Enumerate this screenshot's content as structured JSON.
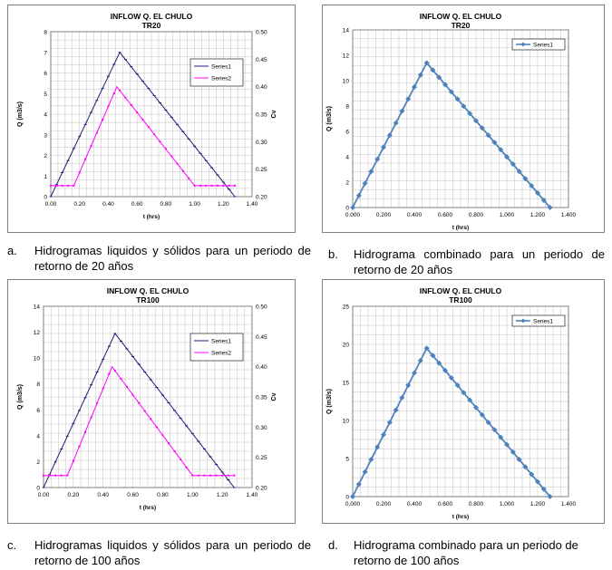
{
  "colors": {
    "series1_dual": "#1f1f7a",
    "series2_dual": "#ff00ff",
    "series1_combined": "#4f81bd",
    "grid": "#c0c0c0",
    "frame": "#808080"
  },
  "chart_data": [
    {
      "id": "a",
      "type": "line",
      "title": "INFLOW  Q. EL CHULO",
      "subtitle": "TR20",
      "xlabel": "t (hrs)",
      "ylabel": "Q (m3/s)",
      "y2label": "Cv",
      "xlim": [
        0,
        1.4
      ],
      "ylim": [
        0,
        8
      ],
      "y2lim": [
        0.2,
        0.5
      ],
      "x_ticks": [
        "0.00",
        "0.20",
        "0.40",
        "0.60",
        "0.80",
        "1.00",
        "1.20",
        "1.40"
      ],
      "y_ticks": [
        "0",
        "1",
        "2",
        "3",
        "4",
        "5",
        "6",
        "7",
        "8"
      ],
      "y2_ticks": [
        "0.20",
        "0.25",
        "0.30",
        "0.35",
        "0.40",
        "0.45",
        "0.50"
      ],
      "legend_position": "top-right",
      "grid": true,
      "series": [
        {
          "name": "Series1",
          "axis": "left",
          "marker": "dash",
          "x": [
            0,
            0.48,
            1.28
          ],
          "y": [
            0,
            7.0,
            0
          ]
        },
        {
          "name": "Series2",
          "axis": "right",
          "marker": "dot",
          "x": [
            0,
            0.16,
            0.46,
            1.0,
            1.28
          ],
          "y": [
            0.22,
            0.22,
            0.4,
            0.22,
            0.22
          ]
        }
      ]
    },
    {
      "id": "b",
      "type": "line",
      "title": "INFLOW  Q. EL CHULO",
      "subtitle": "TR20",
      "xlabel": "t (hrs)",
      "ylabel": "Q (m3/s)",
      "xlim": [
        0,
        1.4
      ],
      "ylim": [
        0,
        14
      ],
      "x_ticks": [
        "0.000",
        "0.200",
        "0.400",
        "0.600",
        "0.800",
        "1.000",
        "1.200",
        "1.400"
      ],
      "y_ticks": [
        "0",
        "2",
        "4",
        "6",
        "8",
        "10",
        "12",
        "14"
      ],
      "legend_position": "top-right",
      "grid": true,
      "series": [
        {
          "name": "Series1",
          "axis": "left",
          "marker": "diamond",
          "x": [
            0,
            0.48,
            1.28
          ],
          "y": [
            0,
            11.4,
            0
          ]
        }
      ]
    },
    {
      "id": "c",
      "type": "line",
      "title": "INFLOW  Q. EL CHULO",
      "subtitle": "TR100",
      "xlabel": "t (hrs)",
      "ylabel": "Q (m3/s)",
      "y2label": "Cv",
      "xlim": [
        0,
        1.4
      ],
      "ylim": [
        0,
        14
      ],
      "y2lim": [
        0.2,
        0.5
      ],
      "x_ticks": [
        "0.00",
        "0.20",
        "0.40",
        "0.60",
        "0.80",
        "1.00",
        "1.20",
        "1.40"
      ],
      "y_ticks": [
        "0",
        "2",
        "4",
        "6",
        "8",
        "10",
        "12",
        "14"
      ],
      "y2_ticks": [
        "0.20",
        "0.25",
        "0.30",
        "0.35",
        "0.40",
        "0.45",
        "0.50"
      ],
      "legend_position": "top-right",
      "grid": true,
      "series": [
        {
          "name": "Series1",
          "axis": "left",
          "marker": "dash",
          "x": [
            0,
            0.48,
            1.28
          ],
          "y": [
            0,
            11.9,
            0
          ]
        },
        {
          "name": "Series2",
          "axis": "right",
          "marker": "dot",
          "x": [
            0,
            0.16,
            0.46,
            1.0,
            1.28
          ],
          "y": [
            0.22,
            0.22,
            0.4,
            0.22,
            0.22
          ]
        }
      ]
    },
    {
      "id": "d",
      "type": "line",
      "title": "INFLOW  Q. EL CHULO",
      "subtitle": "TR100",
      "xlabel": "t (hrs)",
      "ylabel": "Q (m3/s)",
      "xlim": [
        0,
        1.4
      ],
      "ylim": [
        0,
        25
      ],
      "x_ticks": [
        "0.000",
        "0.200",
        "0.400",
        "0.600",
        "0.800",
        "1.000",
        "1.200",
        "1.400"
      ],
      "y_ticks": [
        "0",
        "5",
        "10",
        "15",
        "20",
        "25"
      ],
      "legend_position": "top-right",
      "grid": true,
      "series": [
        {
          "name": "Series1",
          "axis": "left",
          "marker": "diamond",
          "x": [
            0,
            0.48,
            1.28
          ],
          "y": [
            0,
            19.5,
            0
          ]
        }
      ]
    }
  ],
  "captions": [
    {
      "letter": "a.",
      "text": "Hidrogramas liquidos y sólidos para un periodo de retorno de 20 años"
    },
    {
      "letter": "b.",
      "text": "Hidrograma combinado para un periodo de retorno de 20 años"
    },
    {
      "letter": "c.",
      "text": "Hidrogramas liquidos y sólidos para un periodo de retorno de 100 años"
    },
    {
      "letter": "d.",
      "text": "Hidrograma combinado para un periodo de retorno de 100 años"
    }
  ]
}
